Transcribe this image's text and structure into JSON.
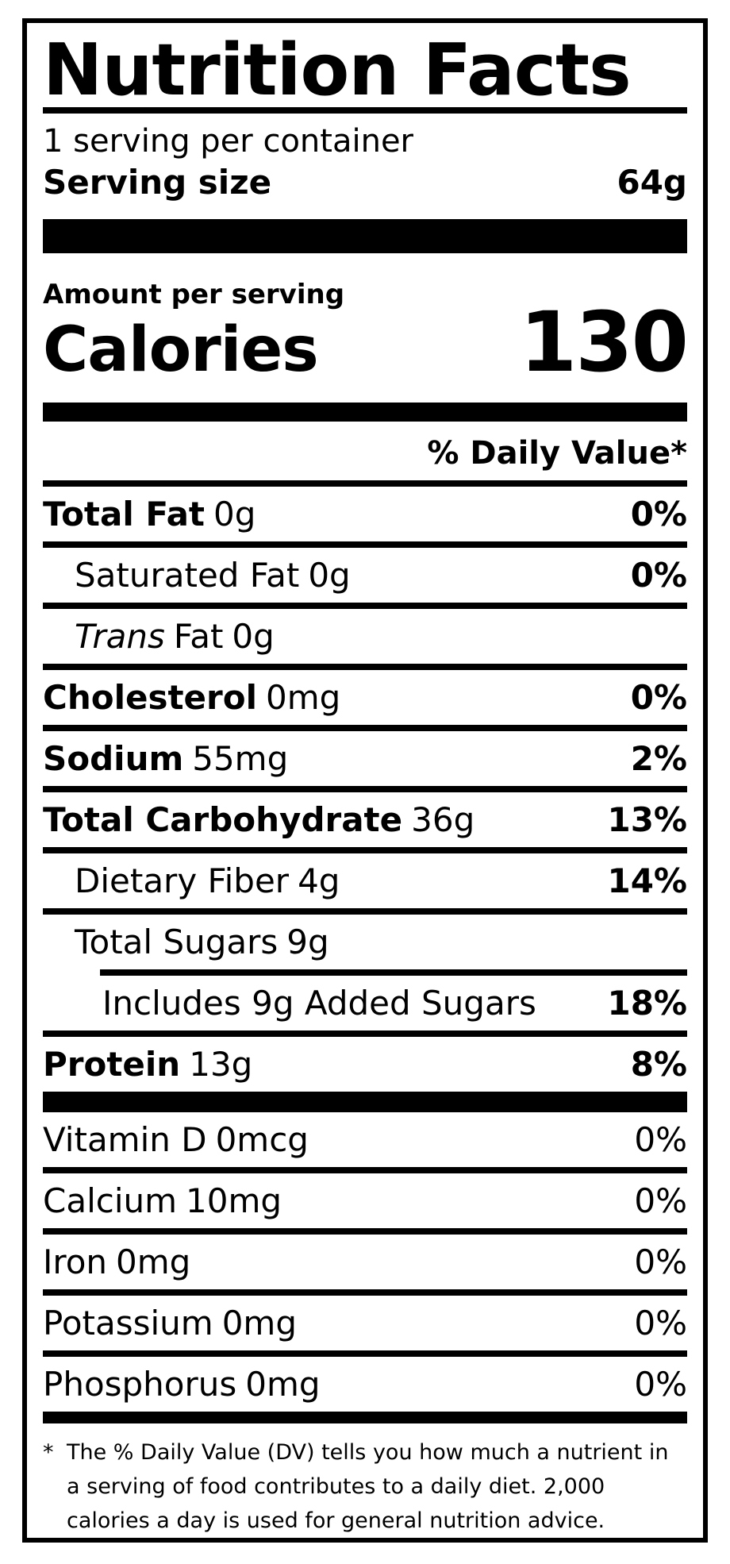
{
  "colors": {
    "ink": "#000000",
    "paper": "#ffffff"
  },
  "label": {
    "title": "Nutrition Facts",
    "servings_per_container": "1 serving per container",
    "serving_size": {
      "label": "Serving size",
      "value": "64g"
    },
    "amount_per_serving": "Amount per serving",
    "calories": {
      "label": "Calories",
      "value": "130"
    },
    "daily_value_header": "% Daily Value*",
    "rows": [
      {
        "name": "Total Fat",
        "amount": "0g",
        "dv": "0%"
      },
      {
        "name": "Saturated Fat",
        "amount": "0g",
        "dv": "0%"
      },
      {
        "name_italic": "Trans",
        "name": "Fat",
        "amount": "0g",
        "dv": ""
      },
      {
        "name": "Cholesterol",
        "amount": "0mg",
        "dv": "0%"
      },
      {
        "name": "Sodium",
        "amount": "55mg",
        "dv": "2%"
      },
      {
        "name": "Total Carbohydrate",
        "amount": "36g",
        "dv": "13%"
      },
      {
        "name": "Dietary Fiber",
        "amount": "4g",
        "dv": "14%"
      },
      {
        "name": "Total Sugars",
        "amount": "9g",
        "dv": ""
      },
      {
        "name": "Includes 9g Added Sugars",
        "amount": "",
        "dv": "18%"
      },
      {
        "name": "Protein",
        "amount": "13g",
        "dv": "8%"
      }
    ],
    "micronutrients": [
      {
        "name": "Vitamin D",
        "amount": "0mcg",
        "dv": "0%"
      },
      {
        "name": "Calcium",
        "amount": "10mg",
        "dv": "0%"
      },
      {
        "name": "Iron",
        "amount": "0mg",
        "dv": "0%"
      },
      {
        "name": "Potassium",
        "amount": "0mg",
        "dv": "0%"
      },
      {
        "name": "Phosphorus",
        "amount": "0mg",
        "dv": "0%"
      }
    ],
    "footnote": {
      "marker": "*",
      "text": "The % Daily Value (DV) tells you how much a nutrient in a serving of food contributes to a daily diet. 2,000 calories a day is used for general nutrition advice."
    }
  }
}
